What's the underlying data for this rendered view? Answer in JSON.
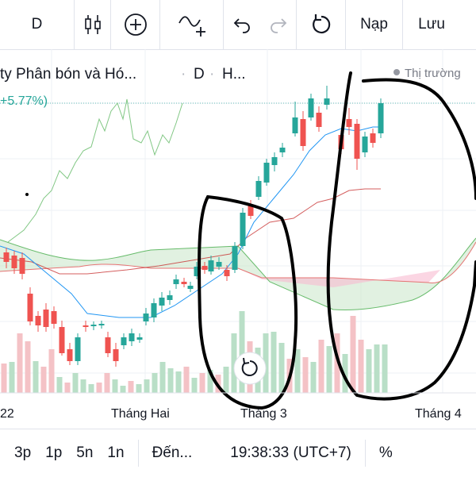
{
  "toolbar": {
    "interval": "D",
    "candle_icon": "candlestick-icon",
    "add_icon": "plus-circle-icon",
    "indicator_icon": "indicators-icon",
    "undo_icon": "undo-icon",
    "redo_icon": "redo-icon",
    "reload_icon": "reload-icon",
    "load_label": "Nạp",
    "save_label": "Lưu"
  },
  "legend": {
    "title": "ty Phân bón và Hó...",
    "interval": "D",
    "exchange": "H...",
    "market_status": "Thị trường",
    "change_text": "+5.77%)"
  },
  "bottom_bar": {
    "ranges": [
      "3p",
      "1p",
      "5n",
      "1n"
    ],
    "goto_label": "Đến...",
    "time": "19:38:33 (UTC+7)",
    "percent_label": "%"
  },
  "colors": {
    "up": "#26a69a",
    "down": "#ef5350",
    "tenkan": "#2196f3",
    "kijun": "#c62828",
    "lagging": "#81c784",
    "cloud_up": "#a5d6a7",
    "cloud_down": "#ef9a9a",
    "ink": "#000000"
  },
  "chart_data": {
    "type": "candlestick",
    "xlabels": [
      "22",
      "Tháng Hai",
      "Tháng 3",
      "Tháng 4"
    ],
    "overlays": [
      "ichimoku-tenkan",
      "ichimoku-kijun",
      "ichimoku-cloud",
      "lagging-span",
      "volume"
    ],
    "annotations": [
      "hand-drawn oval around mid-March rally",
      "hand-drawn oval around late-March candles"
    ],
    "reset_icon": "reset-chart-icon"
  }
}
